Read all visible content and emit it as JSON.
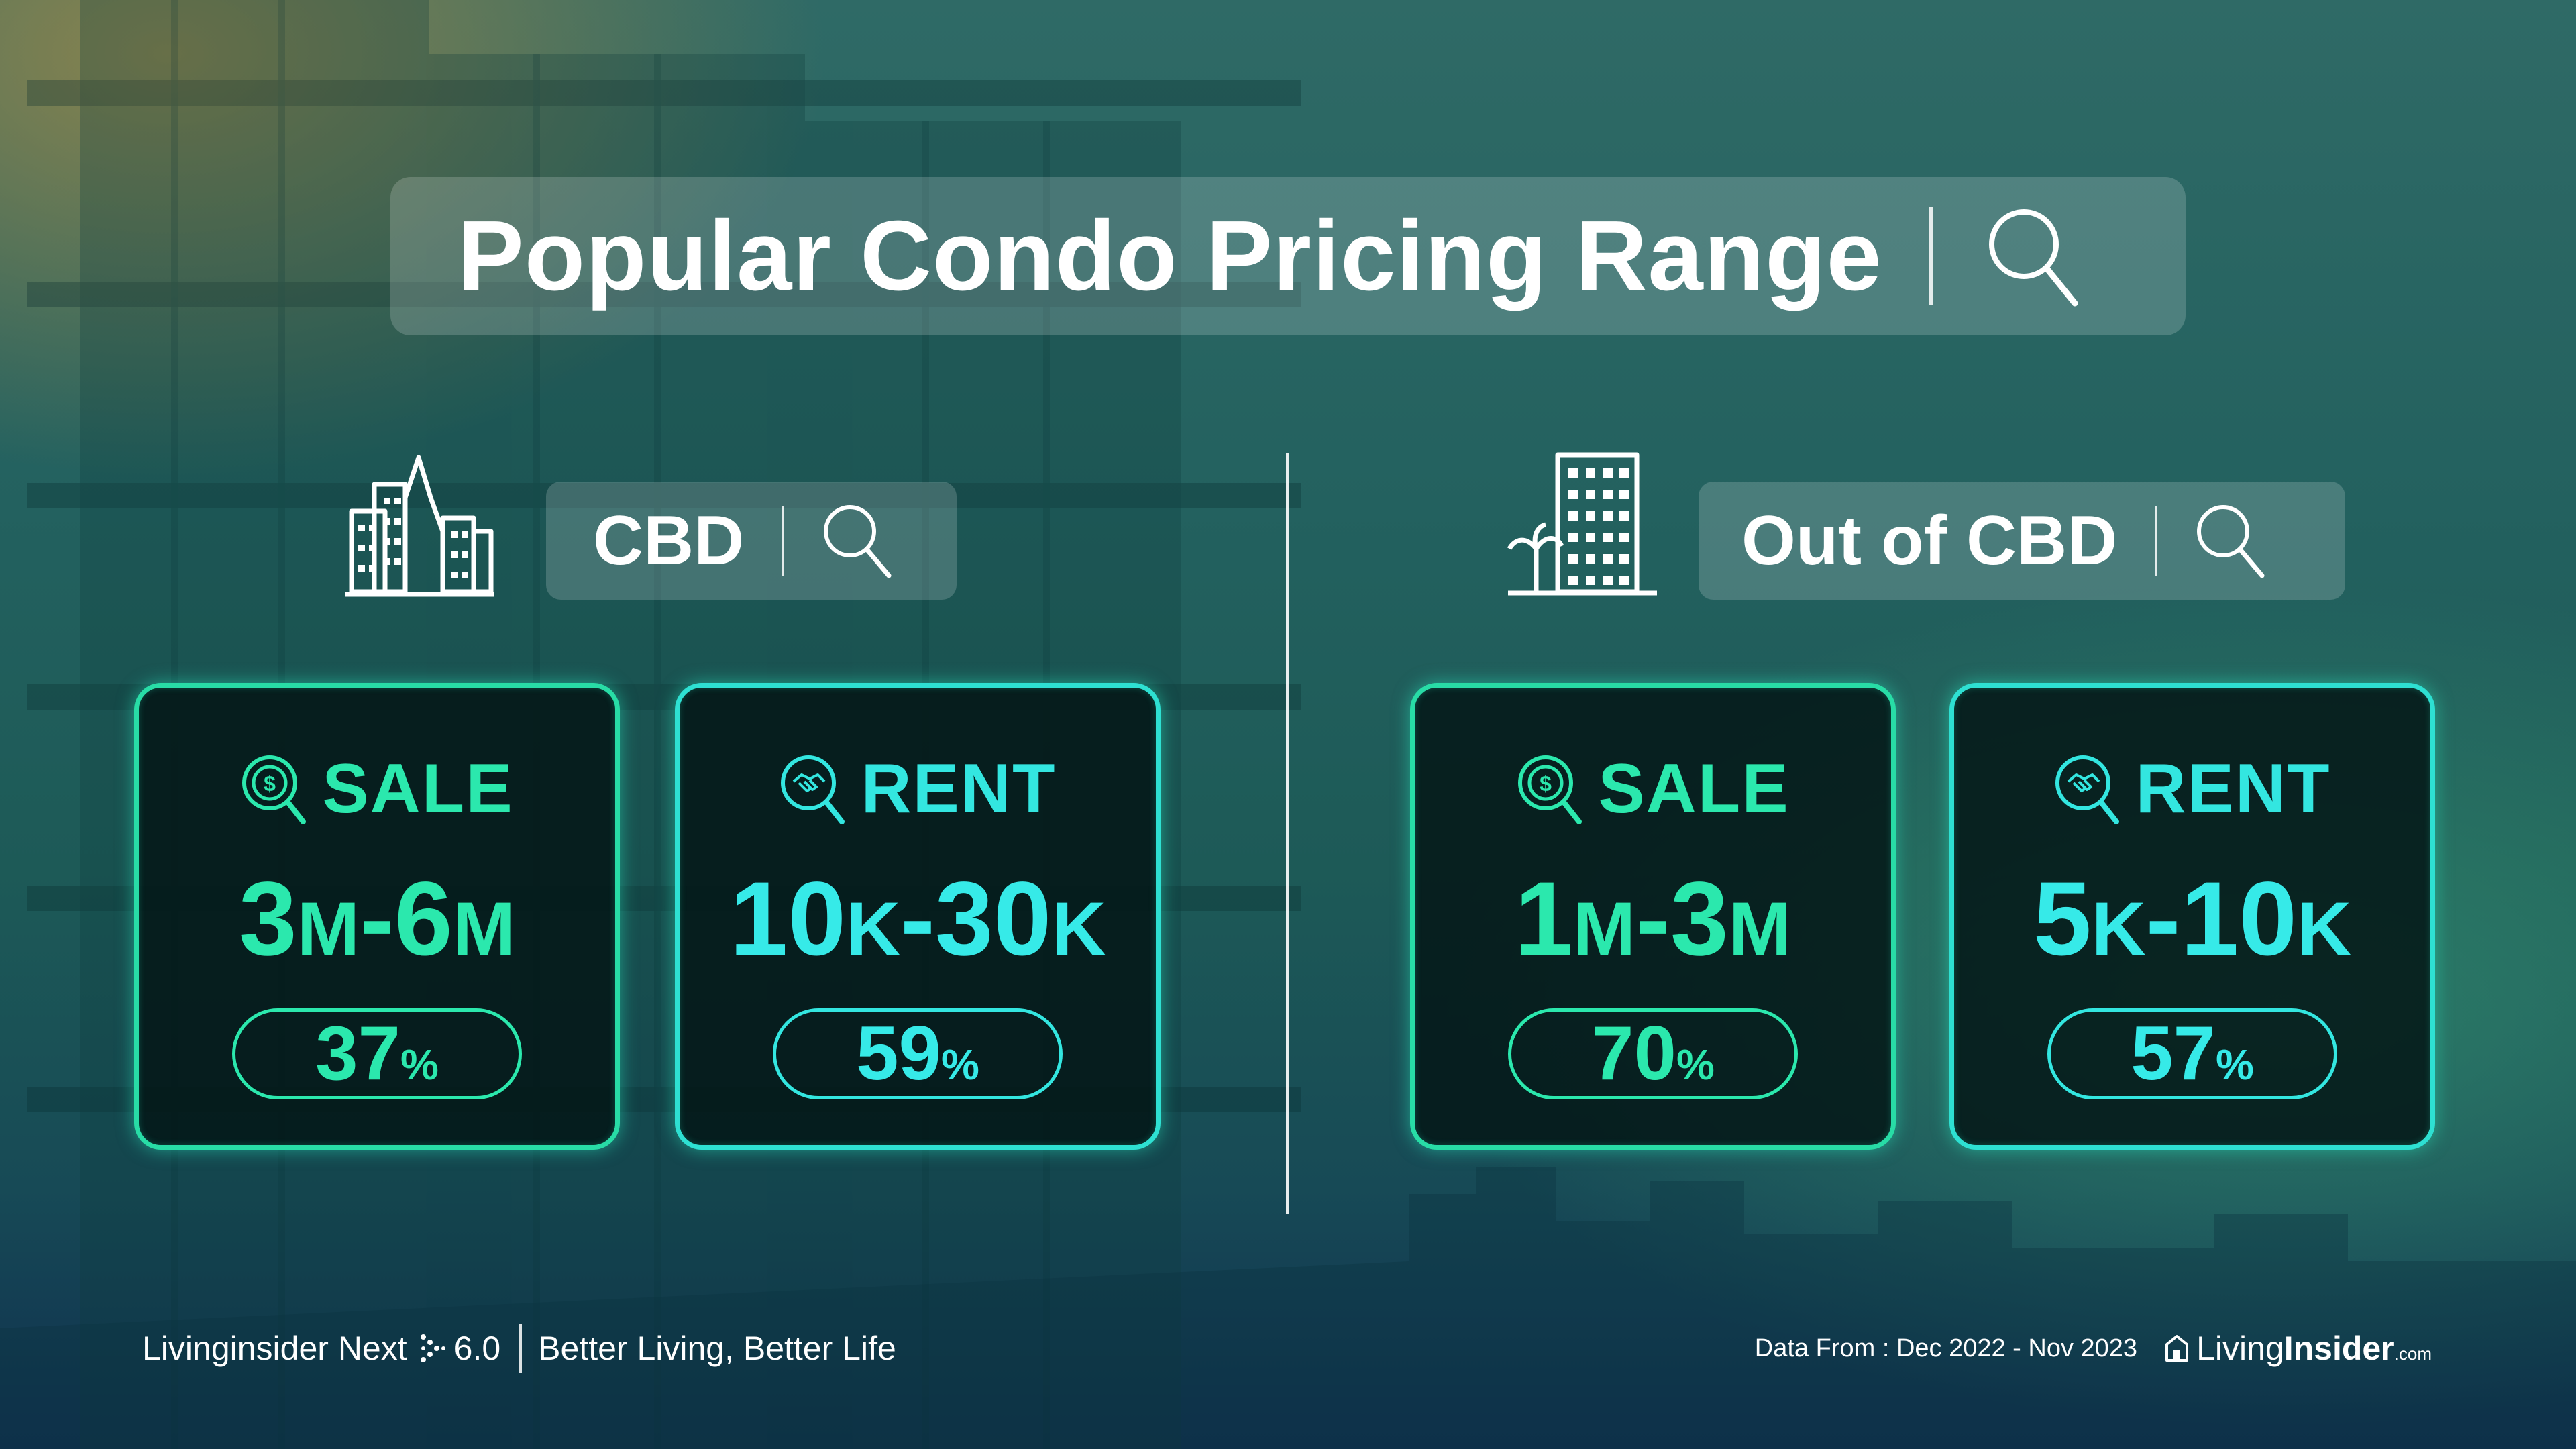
{
  "colors": {
    "sale_accent": "#2be8ad",
    "rent_accent": "#36eae8",
    "card_bg": "#041616"
  },
  "title": {
    "text": "Popular Condo Pricing Range",
    "icon": "search-icon"
  },
  "zones": [
    {
      "name": "CBD",
      "icon": "city-skyline-icon",
      "cards": [
        {
          "type": "SALE",
          "icon": "dollar-search-icon",
          "range_a": "3",
          "unit_a": "M",
          "range_b": "6",
          "unit_b": "M",
          "percent": "37",
          "percent_sym": "%"
        },
        {
          "type": "RENT",
          "icon": "handshake-search-icon",
          "range_a": "10",
          "unit_a": "K",
          "range_b": "30",
          "unit_b": "K",
          "percent": "59",
          "percent_sym": "%"
        }
      ]
    },
    {
      "name": "Out of CBD",
      "icon": "building-palm-icon",
      "cards": [
        {
          "type": "SALE",
          "icon": "dollar-search-icon",
          "range_a": "1",
          "unit_a": "M",
          "range_b": "3",
          "unit_b": "M",
          "percent": "70",
          "percent_sym": "%"
        },
        {
          "type": "RENT",
          "icon": "handshake-search-icon",
          "range_a": "5",
          "unit_a": "K",
          "range_b": "10",
          "unit_b": "K",
          "percent": "57",
          "percent_sym": "%"
        }
      ]
    }
  ],
  "footer": {
    "brand_text": "Livinginsider Next",
    "version": "6.0",
    "slogan": "Better Living, Better Life",
    "data_from": "Data From : Dec 2022 - Nov 2023",
    "logo_part1": "Living",
    "logo_part2": "Insider",
    "logo_part3": ".com"
  }
}
